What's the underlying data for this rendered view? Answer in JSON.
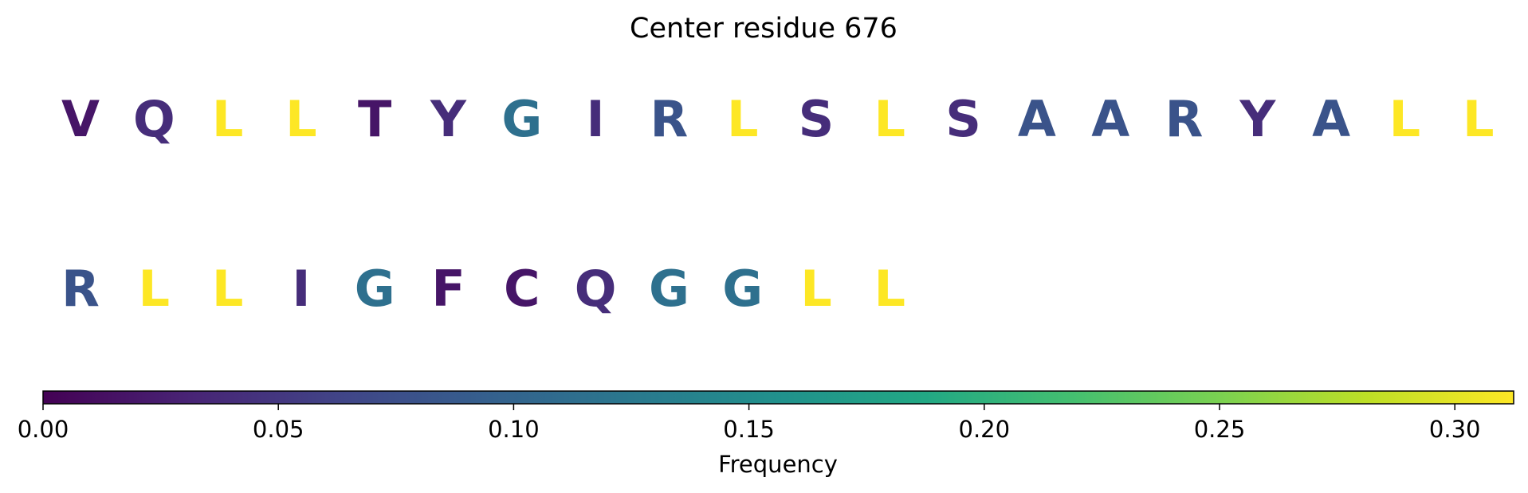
{
  "chart_data": {
    "type": "heatmap",
    "title": "Center residue 676",
    "rows": [
      {
        "residues": [
          "V",
          "Q",
          "L",
          "L",
          "T",
          "Y",
          "G",
          "I",
          "R",
          "L",
          "S",
          "L",
          "S",
          "A",
          "A",
          "R",
          "Y",
          "A",
          "L",
          "L"
        ],
        "frequencies": [
          0.018,
          0.04,
          0.313,
          0.313,
          0.018,
          0.04,
          0.115,
          0.04,
          0.08,
          0.313,
          0.04,
          0.313,
          0.04,
          0.08,
          0.08,
          0.08,
          0.04,
          0.08,
          0.313,
          0.313
        ]
      },
      {
        "residues": [
          "R",
          "L",
          "L",
          "I",
          "G",
          "F",
          "C",
          "Q",
          "G",
          "G",
          "L",
          "L"
        ],
        "frequencies": [
          0.08,
          0.313,
          0.313,
          0.04,
          0.115,
          0.018,
          0.018,
          0.04,
          0.115,
          0.115,
          0.313,
          0.313
        ]
      }
    ],
    "colorbar": {
      "label": "Frequency",
      "colormap": "viridis",
      "range": [
        0,
        0.3125
      ],
      "ticks": [
        "0.00",
        "0.05",
        "0.10",
        "0.15",
        "0.20",
        "0.25",
        "0.30"
      ],
      "tick_values": [
        0.0,
        0.05,
        0.1,
        0.15,
        0.2,
        0.25,
        0.3
      ]
    }
  }
}
